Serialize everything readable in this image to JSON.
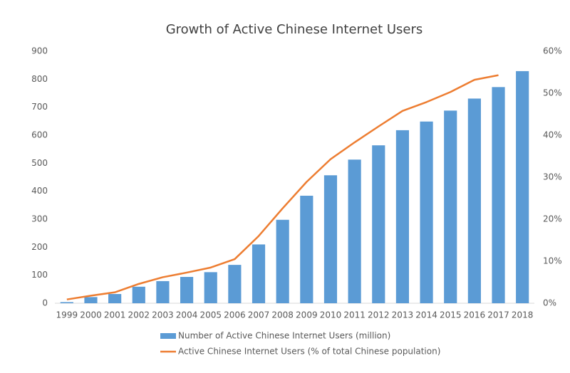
{
  "chart_data": {
    "type": "bar",
    "title": "Growth of Active Chinese Internet Users",
    "categories": [
      "1999",
      "2000",
      "2001",
      "2002",
      "2003",
      "2004",
      "2005",
      "2006",
      "2007",
      "2008",
      "2009",
      "2010",
      "2011",
      "2012",
      "2013",
      "2014",
      "2015",
      "2016",
      "2017",
      "2018"
    ],
    "series": [
      {
        "name": "Number of Active Chinese Internet Users (million)",
        "type": "bar",
        "color": "#5b9bd5",
        "values": [
          4,
          22,
          33,
          59,
          79,
          94,
          111,
          137,
          210,
          298,
          384,
          457,
          513,
          564,
          618,
          649,
          688,
          731,
          772,
          829
        ]
      },
      {
        "name": "Active Chinese Internet Users (% of total Chinese population)",
        "type": "line",
        "axis": "y2",
        "color": "#ed7d31",
        "values": [
          0.9,
          1.8,
          2.6,
          4.6,
          6.2,
          7.3,
          8.5,
          10.5,
          16.0,
          22.6,
          28.9,
          34.3,
          38.3,
          42.1,
          45.8,
          47.9,
          50.3,
          53.2,
          54.3,
          null
        ]
      }
    ],
    "ylim": [
      0,
      900
    ],
    "yticks": [
      0,
      100,
      200,
      300,
      400,
      500,
      600,
      700,
      800,
      900
    ],
    "y2lim": [
      0,
      60
    ],
    "y2ticks": [
      {
        "value": 0,
        "label": "0%"
      },
      {
        "value": 10,
        "label": "10%"
      },
      {
        "value": 20,
        "label": "20%"
      },
      {
        "value": 30,
        "label": "30%"
      },
      {
        "value": 40,
        "label": "40%"
      },
      {
        "value": 50,
        "label": "50%"
      },
      {
        "value": 60,
        "label": "60%"
      }
    ],
    "grid": false,
    "legend": "bottom"
  }
}
